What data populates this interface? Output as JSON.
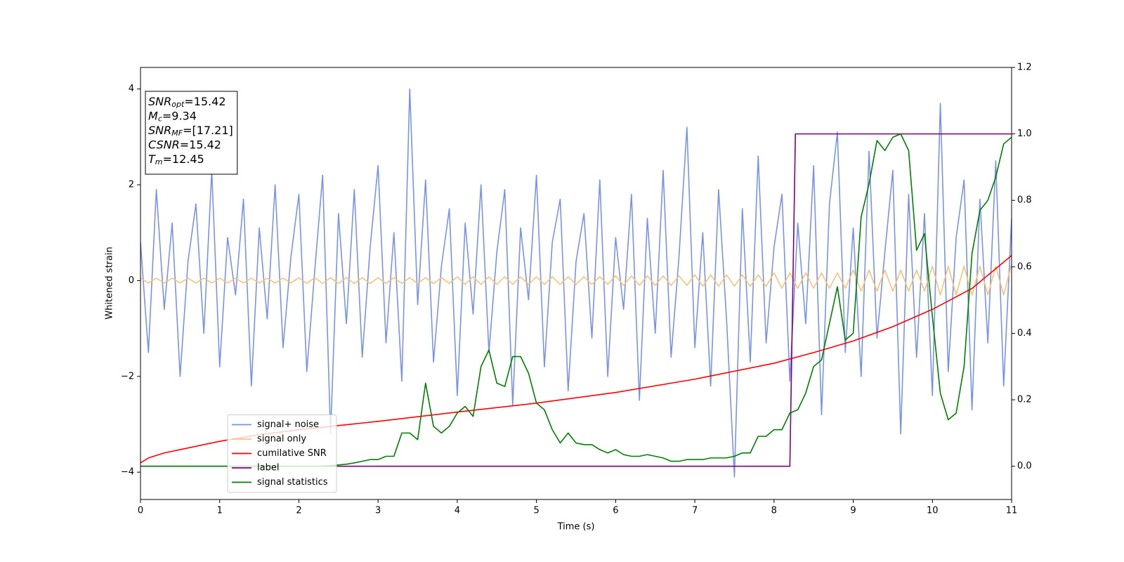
{
  "chart_data": {
    "type": "line",
    "xlabel": "Time (s)",
    "ylabel": "Whitened strain",
    "xlim": [
      0,
      11
    ],
    "ylim": [
      -4.57,
      4.45
    ],
    "y2lim": [
      -0.1,
      1.2
    ],
    "xticks": [
      0,
      1,
      2,
      3,
      4,
      5,
      6,
      7,
      8,
      9,
      10,
      11
    ],
    "yticks": [
      {
        "value": -4,
        "label": "−4"
      },
      {
        "value": -2,
        "label": "−2"
      },
      0,
      2,
      4
    ],
    "y2ticks": [
      {
        "value": 0,
        "label": "0.0"
      },
      0.2,
      0.4,
      0.6,
      0.8,
      {
        "value": 1,
        "label": "1.0"
      },
      1.2
    ],
    "legend": "lower left",
    "annotations": [
      {
        "symbol": "SNR",
        "subscript": "opt",
        "text": "=15.42"
      },
      {
        "symbol": "M",
        "subscript": "c",
        "text": "=9.34"
      },
      {
        "symbol": "SNR",
        "subscript": "MF",
        "text": "=[17.21]"
      },
      {
        "symbol": "CSNR",
        "text": "=15.42"
      },
      {
        "symbol": "T",
        "subscript": "m",
        "text": "=12.45"
      }
    ],
    "x": [
      0,
      0.1,
      0.2,
      0.3,
      0.4,
      0.5,
      0.6,
      0.7,
      0.8,
      0.9,
      1,
      1.1,
      1.2,
      1.3,
      1.4,
      1.5,
      1.6,
      1.7,
      1.8,
      1.9,
      2,
      2.1,
      2.2,
      2.3,
      2.4,
      2.5,
      2.6,
      2.7,
      2.8,
      2.9,
      3,
      3.1,
      3.2,
      3.3,
      3.4,
      3.5,
      3.6,
      3.7,
      3.8,
      3.9,
      4,
      4.1,
      4.2,
      4.3,
      4.4,
      4.5,
      4.6,
      4.7,
      4.8,
      4.9,
      5,
      5.1,
      5.2,
      5.3,
      5.4,
      5.5,
      5.6,
      5.7,
      5.8,
      5.9,
      6,
      6.1,
      6.2,
      6.3,
      6.4,
      6.5,
      6.6,
      6.7,
      6.8,
      6.9,
      7,
      7.1,
      7.2,
      7.3,
      7.4,
      7.5,
      7.6,
      7.7,
      7.8,
      7.9,
      8,
      8.1,
      8.2,
      8.3,
      8.4,
      8.5,
      8.6,
      8.7,
      8.8,
      8.9,
      9,
      9.1,
      9.2,
      9.3,
      9.4,
      9.5,
      9.6,
      9.7,
      9.8,
      9.9,
      10,
      10.1,
      10.2,
      10.3,
      10.4,
      10.5,
      10.6,
      10.7,
      10.8,
      10.9,
      11
    ],
    "series": [
      {
        "name": "signal+ noise",
        "color": "#7893e8",
        "axis": "y",
        "values": [
          0.8,
          -1.5,
          1.9,
          -0.6,
          1.2,
          -2.0,
          0.4,
          1.6,
          -1.1,
          2.3,
          -1.8,
          0.9,
          -0.3,
          1.7,
          -2.2,
          1.1,
          -0.8,
          2.0,
          -1.4,
          0.5,
          1.8,
          -1.9,
          0.2,
          2.2,
          -3.2,
          1.4,
          -0.9,
          1.9,
          -1.6,
          0.7,
          2.4,
          -1.3,
          1.0,
          -2.1,
          4.0,
          -0.5,
          2.1,
          -1.7,
          0.3,
          1.5,
          -2.4,
          1.2,
          -0.7,
          2.0,
          -1.5,
          0.6,
          1.9,
          -2.6,
          1.1,
          -0.4,
          2.2,
          -1.8,
          0.8,
          1.7,
          -2.3,
          0.4,
          1.4,
          -1.2,
          2.1,
          -2.0,
          0.9,
          -0.6,
          1.8,
          -2.5,
          1.3,
          -1.1,
          2.3,
          -1.6,
          0.5,
          3.2,
          -1.4,
          1.0,
          -2.2,
          1.9,
          -0.8,
          -4.1,
          1.5,
          -1.7,
          2.6,
          -1.3,
          0.7,
          1.8,
          -2.1,
          1.2,
          -0.9,
          2.4,
          -2.8,
          1.6,
          3.1,
          -1.5,
          1.1,
          -2.0,
          2.7,
          -1.2,
          0.6,
          2.3,
          -3.2,
          1.8,
          -1.6,
          1.4,
          -2.4,
          3.7,
          -1.9,
          0.9,
          2.1,
          -2.7,
          1.7,
          -1.3,
          2.5,
          -2.2,
          1.3
        ]
      },
      {
        "name": "signal only",
        "color": "#f7c27a",
        "axis": "y",
        "values": [
          0.05,
          -0.05,
          0.05,
          -0.05,
          0.05,
          -0.05,
          0.05,
          -0.05,
          0.05,
          -0.05,
          0.05,
          -0.05,
          0.05,
          -0.05,
          0.05,
          -0.05,
          0.05,
          -0.05,
          0.05,
          -0.05,
          0.06,
          -0.06,
          0.06,
          -0.06,
          0.06,
          -0.06,
          0.06,
          -0.06,
          0.06,
          -0.06,
          0.06,
          -0.06,
          0.06,
          -0.06,
          0.06,
          -0.06,
          0.06,
          -0.06,
          0.06,
          -0.06,
          0.08,
          -0.08,
          0.08,
          -0.08,
          0.08,
          -0.08,
          0.08,
          -0.08,
          0.08,
          -0.08,
          0.08,
          -0.08,
          0.08,
          -0.08,
          0.08,
          -0.08,
          0.08,
          -0.08,
          0.08,
          -0.08,
          0.1,
          -0.1,
          0.1,
          -0.1,
          0.1,
          -0.1,
          0.1,
          -0.1,
          0.1,
          -0.1,
          0.12,
          -0.12,
          0.12,
          -0.12,
          0.12,
          -0.12,
          0.12,
          -0.12,
          0.12,
          -0.12,
          0.16,
          -0.16,
          0.16,
          -0.16,
          0.16,
          -0.16,
          0.16,
          -0.16,
          0.16,
          -0.16,
          0.22,
          -0.22,
          0.22,
          -0.22,
          0.22,
          -0.22,
          0.22,
          -0.22,
          0.22,
          -0.22,
          0.3,
          -0.3,
          0.3,
          -0.3,
          0.3,
          -0.3,
          0.3,
          -0.3,
          0.3,
          -0.3,
          0.35
        ]
      },
      {
        "name": "cumilative SNR",
        "color": "#ff0000",
        "axis": "y2",
        "x": [
          0,
          0.1,
          0.3,
          0.5,
          1,
          1.5,
          2,
          3,
          4,
          5,
          6,
          7,
          8,
          8.5,
          9,
          9.5,
          10,
          10.5,
          11
        ],
        "values": [
          0.01,
          0.025,
          0.04,
          0.05,
          0.075,
          0.095,
          0.11,
          0.135,
          0.163,
          0.19,
          0.222,
          0.262,
          0.31,
          0.342,
          0.377,
          0.42,
          0.472,
          0.535,
          0.634
        ]
      },
      {
        "name": "label",
        "color": "#800080",
        "axis": "y2",
        "x": [
          0,
          8.2,
          8.27,
          11
        ],
        "values": [
          0,
          0,
          1,
          1
        ]
      },
      {
        "name": "signal statistics",
        "color": "#008000",
        "axis": "y2",
        "values": [
          0,
          0,
          0,
          0,
          0,
          0,
          0,
          0,
          0,
          0,
          0,
          0,
          0,
          0,
          0,
          0,
          0,
          0,
          0,
          0,
          0,
          0,
          0,
          0,
          0.002,
          0.004,
          0.006,
          0.01,
          0.015,
          0.02,
          0.02,
          0.03,
          0.03,
          0.1,
          0.1,
          0.08,
          0.25,
          0.12,
          0.1,
          0.12,
          0.16,
          0.18,
          0.15,
          0.3,
          0.35,
          0.25,
          0.24,
          0.33,
          0.33,
          0.28,
          0.19,
          0.17,
          0.11,
          0.07,
          0.1,
          0.07,
          0.065,
          0.065,
          0.05,
          0.04,
          0.05,
          0.035,
          0.03,
          0.03,
          0.035,
          0.03,
          0.025,
          0.015,
          0.015,
          0.02,
          0.02,
          0.02,
          0.025,
          0.025,
          0.025,
          0.03,
          0.04,
          0.04,
          0.09,
          0.09,
          0.11,
          0.11,
          0.16,
          0.17,
          0.22,
          0.3,
          0.32,
          0.43,
          0.54,
          0.38,
          0.4,
          0.75,
          0.85,
          0.98,
          0.95,
          0.99,
          1.0,
          0.95,
          0.65,
          0.7,
          0.45,
          0.22,
          0.14,
          0.16,
          0.3,
          0.64,
          0.77,
          0.8,
          0.87,
          0.97,
          0.99
        ]
      }
    ]
  }
}
